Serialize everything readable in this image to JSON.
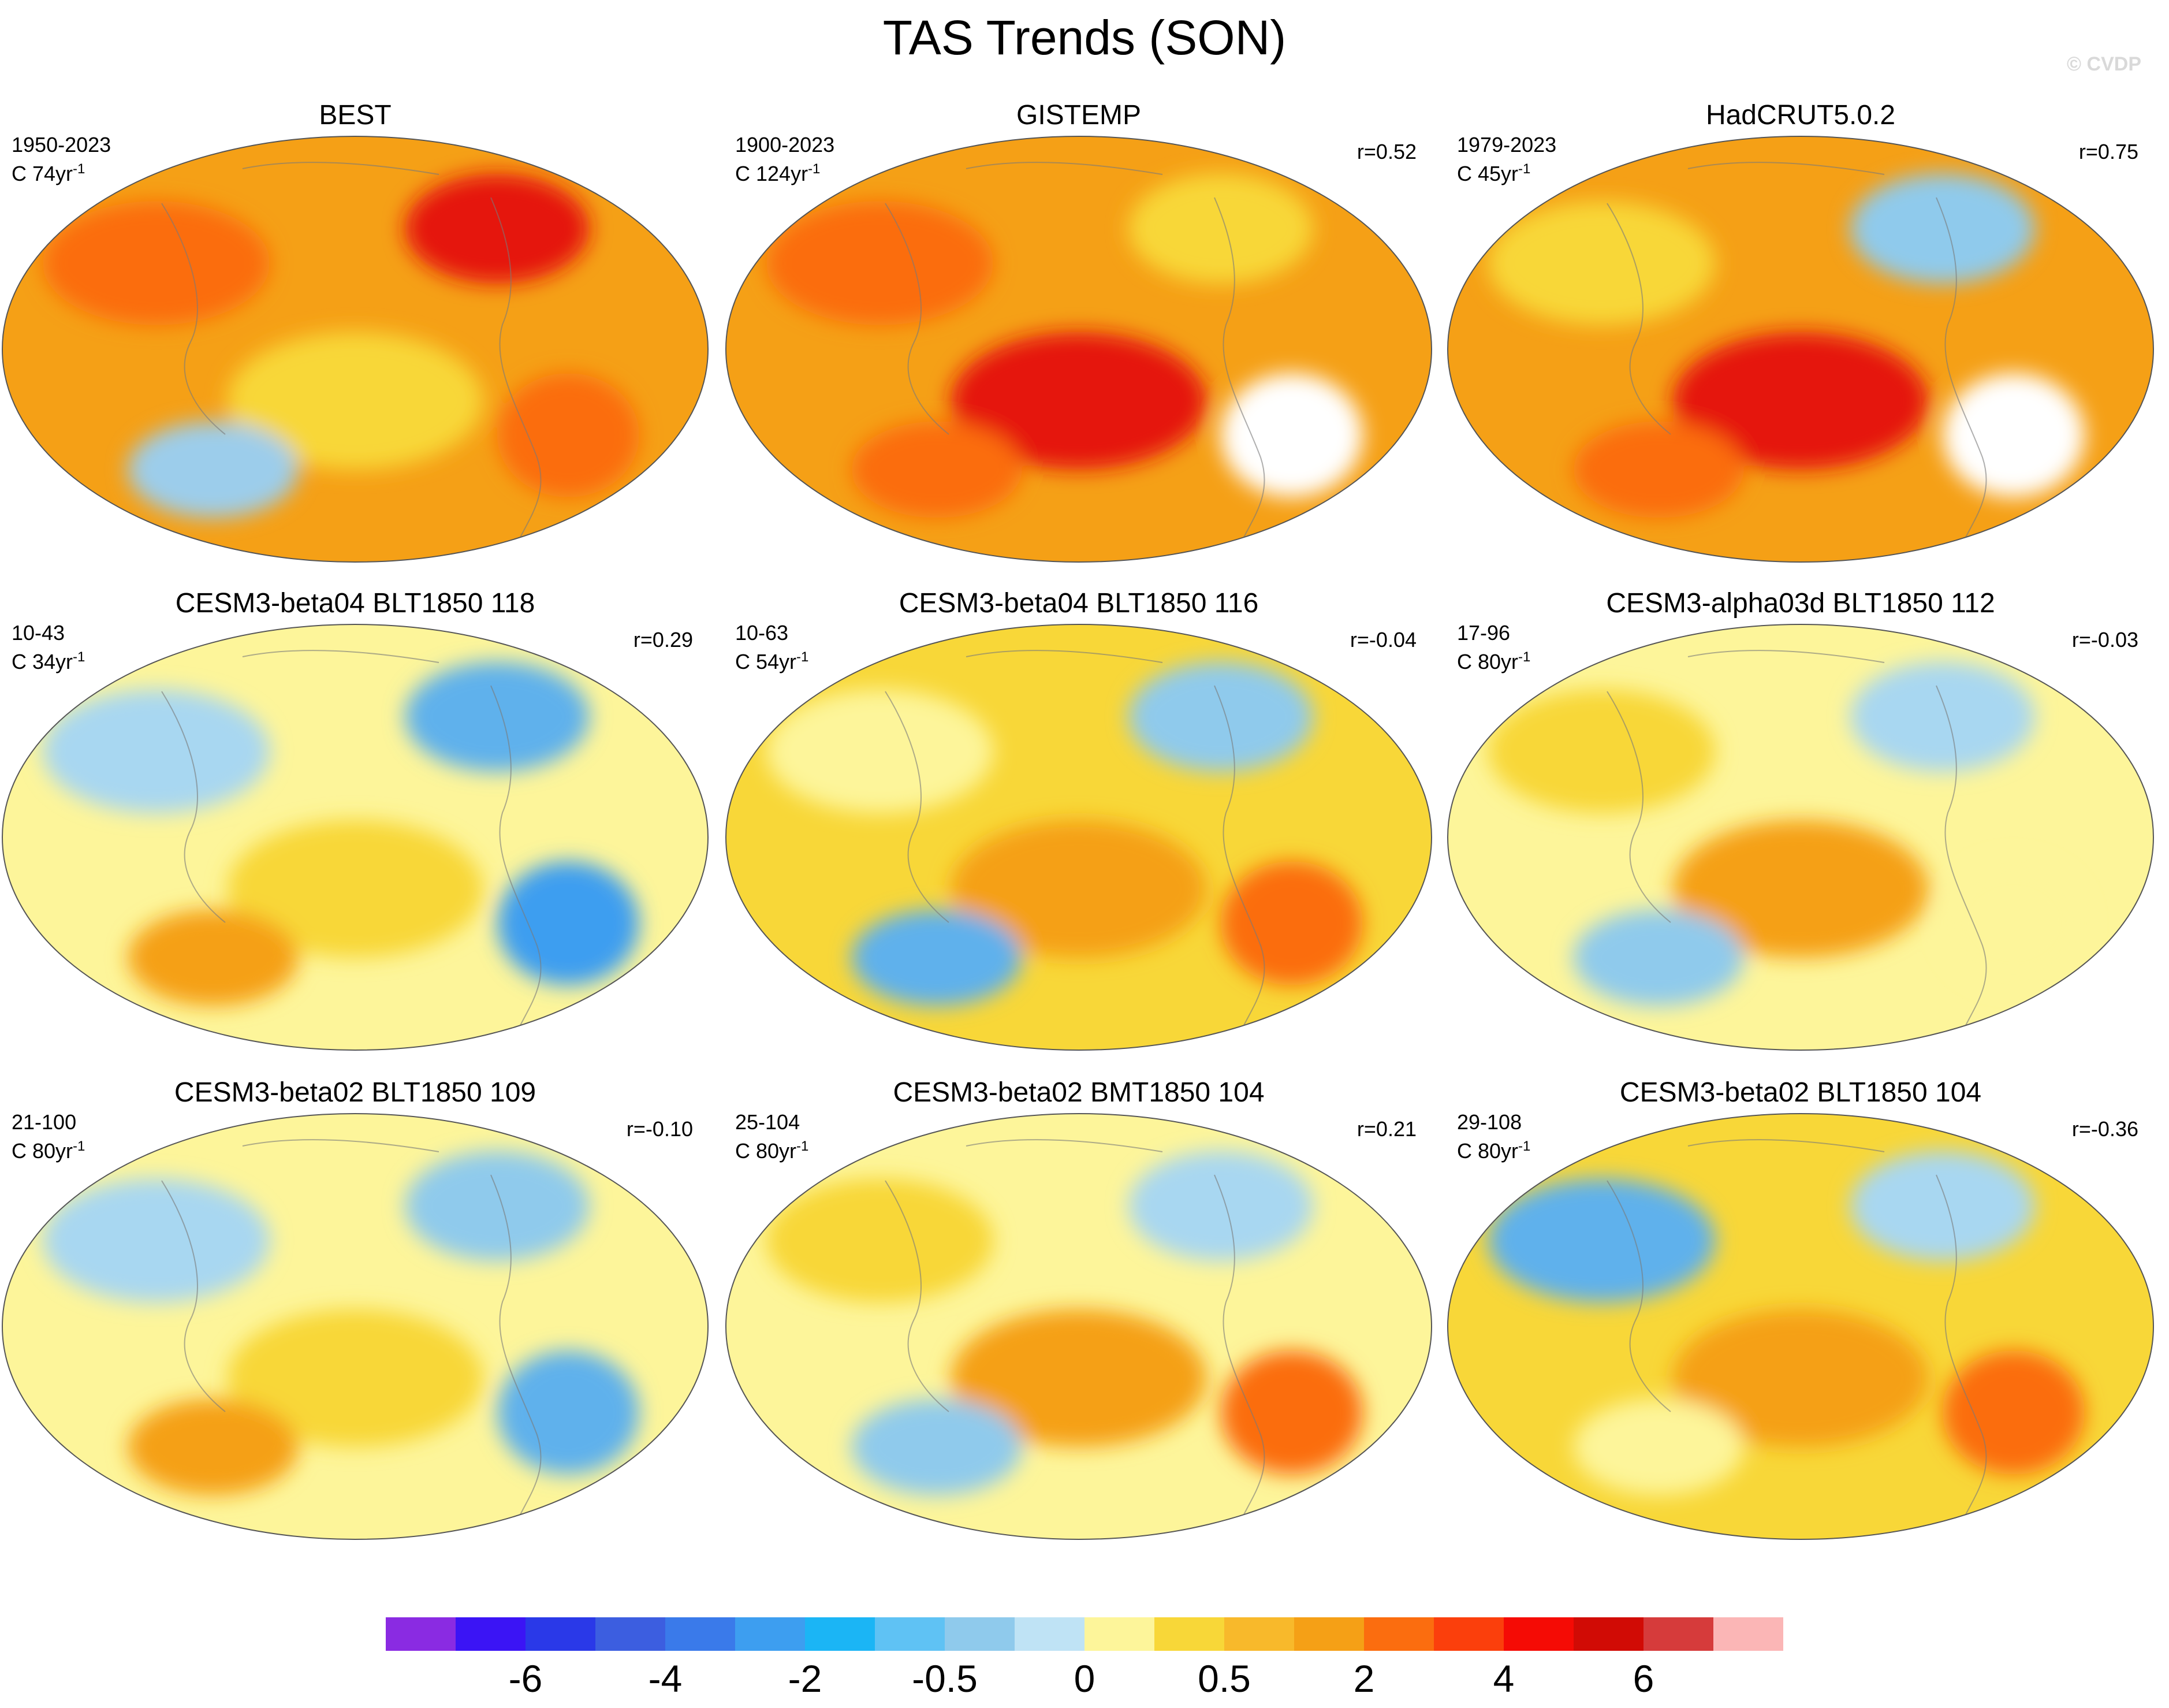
{
  "figure": {
    "title": "TAS Trends (SON)",
    "watermark": "© CVDP"
  },
  "panels": [
    {
      "title": "BEST",
      "period": "1950-2023",
      "nyears_prefix": "C 74yr",
      "nyears_exp": "-1",
      "corr": "",
      "colors": {
        "base": "#f5a016",
        "accents": [
          "#fb6d0f",
          "#e5160c",
          "#f8d738",
          "#9ccdeb",
          "#fb6d0f"
        ]
      }
    },
    {
      "title": "GISTEMP",
      "period": "1900-2023",
      "nyears_prefix": "C 124yr",
      "nyears_exp": "-1",
      "corr": "r=0.52",
      "colors": {
        "base": "#f5a016",
        "accents": [
          "#fb6d0f",
          "#f8d738",
          "#e5160c",
          "#fb6d0f",
          "#ffffff"
        ]
      }
    },
    {
      "title": "HadCRUT5.0.2",
      "period": "1979-2023",
      "nyears_prefix": "C 45yr",
      "nyears_exp": "-1",
      "corr": "r=0.75",
      "colors": {
        "base": "#f5a016",
        "accents": [
          "#f8d738",
          "#8fcaec",
          "#e5160c",
          "#fb6d0f",
          "#ffffff"
        ]
      }
    },
    {
      "title": "CESM3-beta04 BLT1850 118",
      "period": "10-43",
      "nyears_prefix": "C 34yr",
      "nyears_exp": "-1",
      "corr": "r=0.29",
      "colors": {
        "base": "#fdf59a",
        "accents": [
          "#a8d7f1",
          "#5fb1ec",
          "#f8d738",
          "#f5a016",
          "#3d9ef0"
        ]
      }
    },
    {
      "title": "CESM3-beta04 BLT1850 116",
      "period": "10-63",
      "nyears_prefix": "C 54yr",
      "nyears_exp": "-1",
      "corr": "r=-0.04",
      "colors": {
        "base": "#f8d738",
        "accents": [
          "#fdf59a",
          "#8fcaec",
          "#f5a016",
          "#5fb1ec",
          "#fb6d0f"
        ]
      }
    },
    {
      "title": "CESM3-alpha03d BLT1850 112",
      "period": "17-96",
      "nyears_prefix": "C 80yr",
      "nyears_exp": "-1",
      "corr": "r=-0.03",
      "colors": {
        "base": "#fdf59a",
        "accents": [
          "#f8d738",
          "#a8d7f1",
          "#f5a016",
          "#8fcaec",
          "#fdf59a"
        ]
      }
    },
    {
      "title": "CESM3-beta02 BLT1850 109",
      "period": "21-100",
      "nyears_prefix": "C 80yr",
      "nyears_exp": "-1",
      "corr": "r=-0.10",
      "colors": {
        "base": "#fdf59a",
        "accents": [
          "#a8d7f1",
          "#8fcaec",
          "#f8d738",
          "#f5a016",
          "#5fb1ec"
        ]
      }
    },
    {
      "title": "CESM3-beta02 BMT1850 104",
      "period": "25-104",
      "nyears_prefix": "C 80yr",
      "nyears_exp": "-1",
      "corr": "r=0.21",
      "colors": {
        "base": "#fdf59a",
        "accents": [
          "#f8d738",
          "#a8d7f1",
          "#f5a016",
          "#8fcaec",
          "#fb6d0f"
        ]
      }
    },
    {
      "title": "CESM3-beta02 BLT1850 104",
      "period": "29-108",
      "nyears_prefix": "C 80yr",
      "nyears_exp": "-1",
      "corr": "r=-0.36",
      "colors": {
        "base": "#f8d738",
        "accents": [
          "#5fb1ec",
          "#a8d7f1",
          "#f5a016",
          "#fdf59a",
          "#fb6d0f"
        ]
      }
    }
  ],
  "colorbar": {
    "colors": [
      "#8a2be2",
      "#3b14f5",
      "#2a39e8",
      "#3c5ee0",
      "#3a7aea",
      "#3d9ef0",
      "#1bb5f5",
      "#5fc2f4",
      "#8fcaec",
      "#bfe3f5",
      "#fdf59a",
      "#f8d738",
      "#f8b92b",
      "#f5a016",
      "#fb6d0f",
      "#fb3f0c",
      "#f50b05",
      "#d10b05",
      "#d63b3b",
      "#fbb6b6"
    ],
    "labels": [
      "-6",
      "-4",
      "-2",
      "-0.5",
      "0",
      "0.5",
      "2",
      "4",
      "6"
    ],
    "label_boundaries": [
      2,
      4,
      6,
      8,
      10,
      12,
      14,
      16,
      18
    ]
  }
}
